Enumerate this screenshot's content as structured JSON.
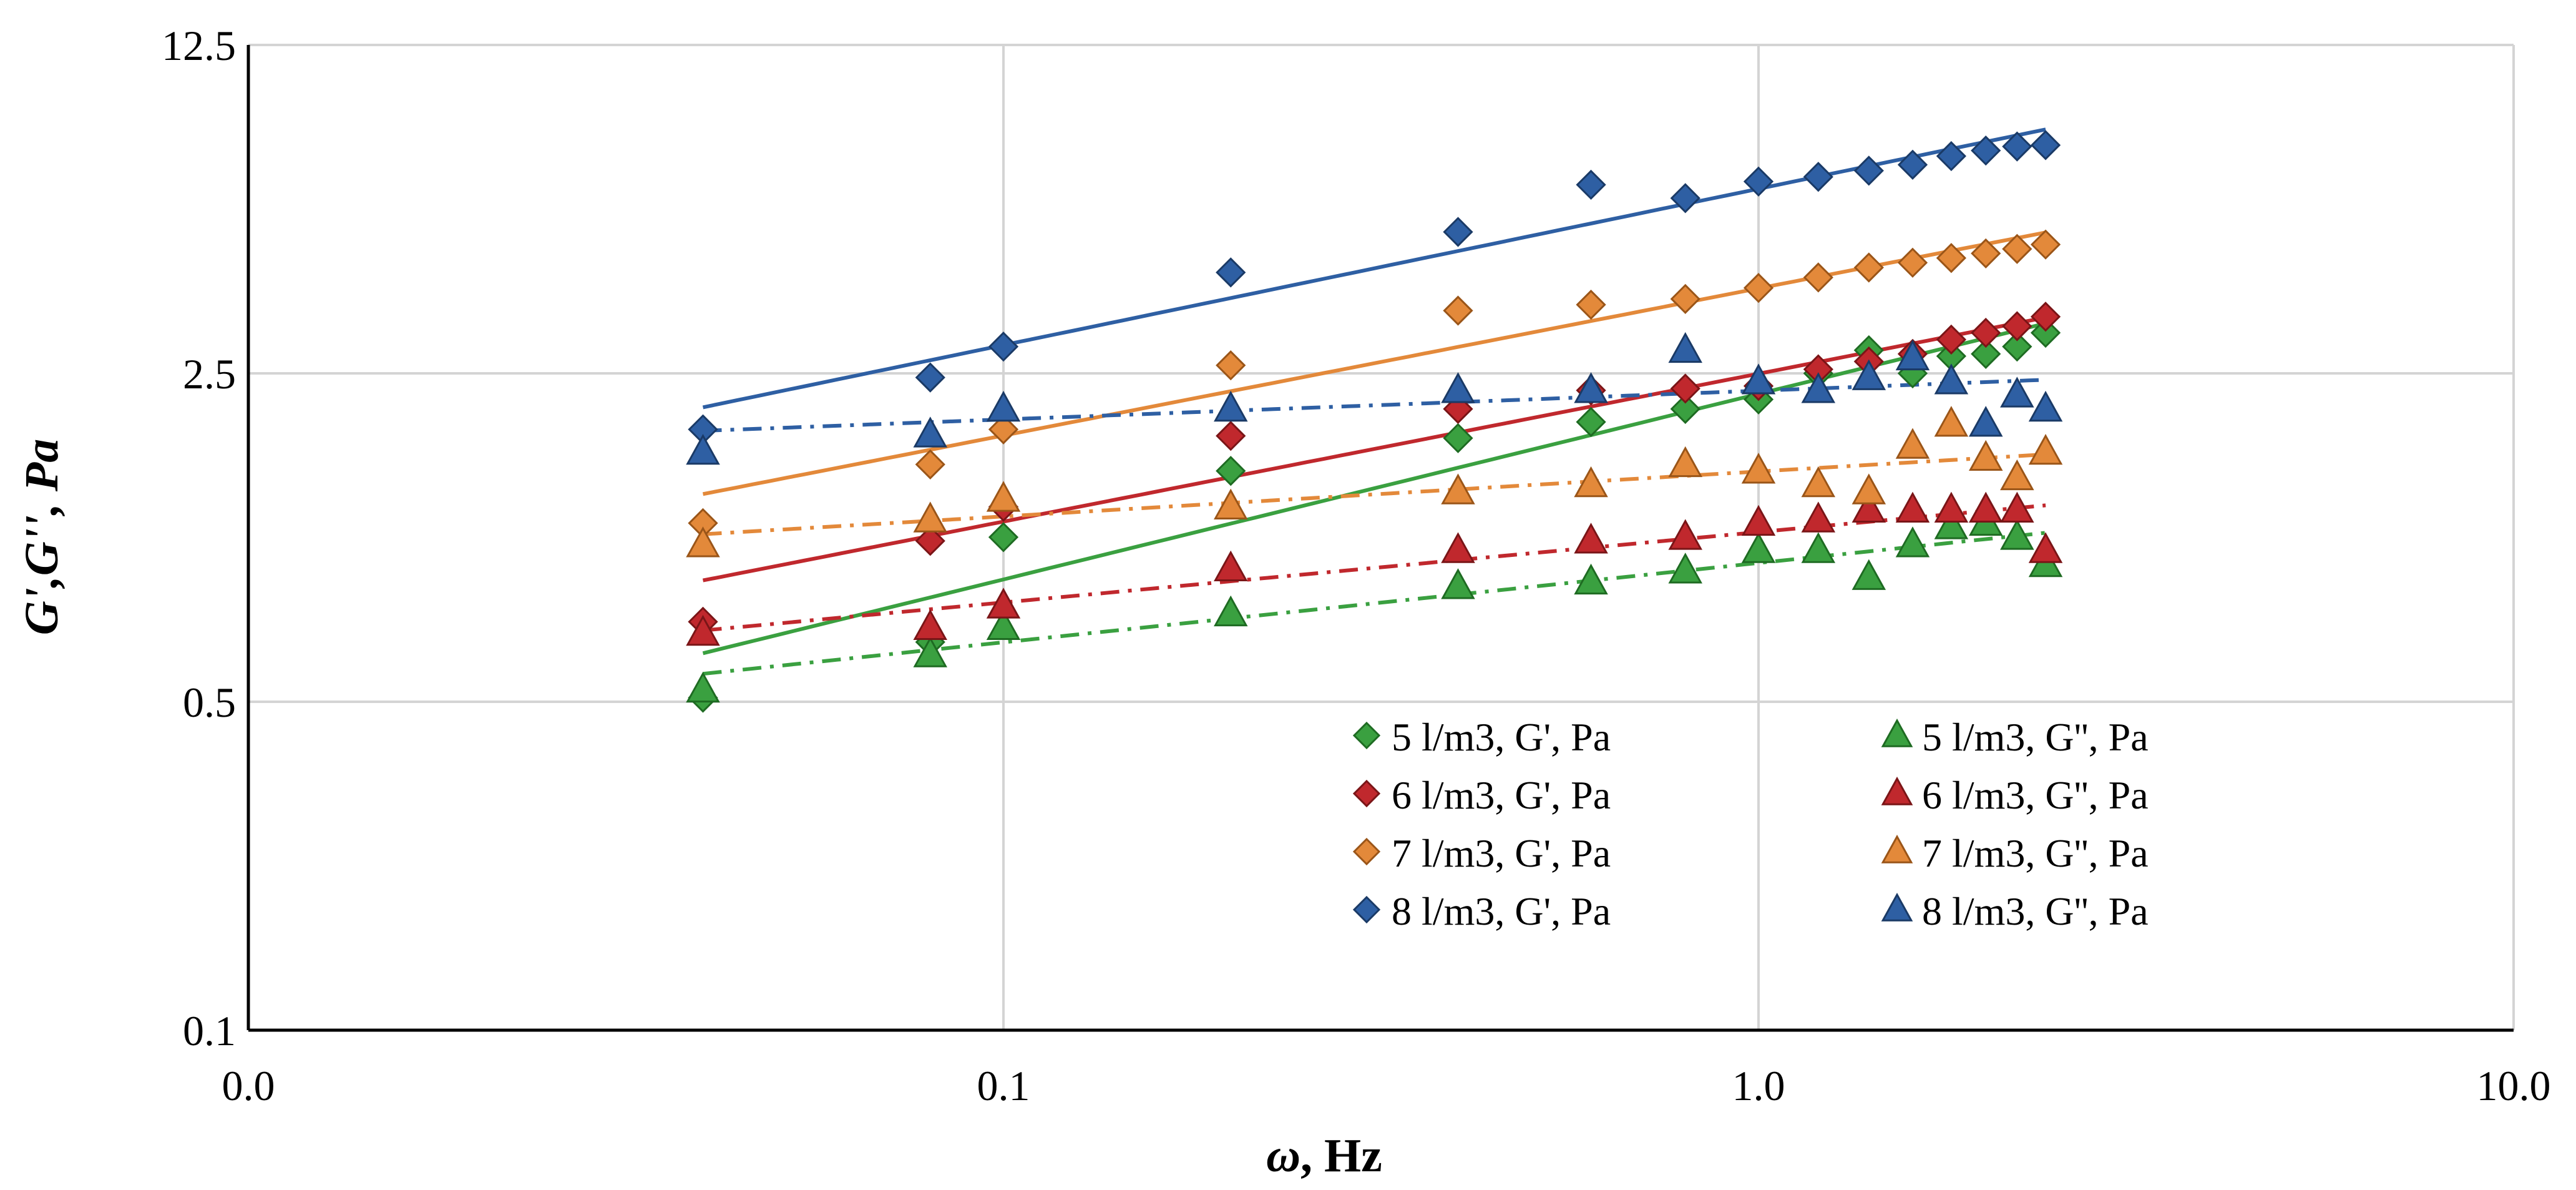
{
  "chart_data": {
    "type": "scatter",
    "x_scale": "log",
    "y_scale": "log",
    "xlabel_symbol": "ω",
    "xlabel_unit": ", Hz",
    "ylabel": "G',G'', Pa",
    "xlim": [
      0.01,
      10
    ],
    "ylim": [
      0.1,
      12.5
    ],
    "x_ticks": [
      {
        "value": 0.01,
        "label": "0.0"
      },
      {
        "value": 0.1,
        "label": "0.1"
      },
      {
        "value": 1,
        "label": "1.0"
      },
      {
        "value": 10,
        "label": "10.0"
      }
    ],
    "y_ticks": [
      {
        "value": 0.1,
        "label": "0.1"
      },
      {
        "value": 0.5,
        "label": "0.5"
      },
      {
        "value": 2.5,
        "label": "2.5"
      },
      {
        "value": 12.5,
        "label": "12.5"
      }
    ],
    "grid": true,
    "legend_position": "lower-right",
    "x": [
      0.04,
      0.08,
      0.1,
      0.2,
      0.4,
      0.6,
      0.8,
      1.0,
      1.2,
      1.4,
      1.6,
      1.8,
      2.0,
      2.2,
      2.4
    ],
    "series": [
      {
        "name": "5 l/m3, G', Pa",
        "marker": "diamond",
        "color": "#3aa040",
        "stroke": "#1e6b22",
        "line_style": "solid",
        "fit": "power",
        "fit_x": [
          0.04,
          2.4
        ],
        "values": [
          0.51,
          0.67,
          1.12,
          1.55,
          1.82,
          1.97,
          2.1,
          2.2,
          2.5,
          2.8,
          2.5,
          2.72,
          2.75,
          2.85,
          3.05
        ]
      },
      {
        "name": "6 l/m3, G', Pa",
        "marker": "diamond",
        "color": "#c0282d",
        "stroke": "#7a1517",
        "line_style": "solid",
        "fit": "power",
        "fit_x": [
          0.04,
          2.4
        ],
        "values": [
          0.74,
          1.1,
          1.3,
          1.84,
          2.1,
          2.3,
          2.32,
          2.35,
          2.55,
          2.65,
          2.75,
          2.95,
          3.05,
          3.15,
          3.3
        ]
      },
      {
        "name": "7 l/m3, G', Pa",
        "marker": "diamond",
        "color": "#e3893a",
        "stroke": "#9a5518",
        "line_style": "solid",
        "fit": "power",
        "fit_x": [
          0.04,
          2.4
        ],
        "values": [
          1.2,
          1.6,
          1.9,
          2.6,
          3.4,
          3.5,
          3.6,
          3.8,
          4.0,
          4.2,
          4.3,
          4.4,
          4.5,
          4.6,
          4.7
        ]
      },
      {
        "name": "8 l/m3, G', Pa",
        "marker": "diamond",
        "color": "#2e5fa3",
        "stroke": "#1a3a66",
        "line_style": "solid",
        "fit": "power",
        "fit_x": [
          0.04,
          2.4
        ],
        "values": [
          1.9,
          2.45,
          2.85,
          4.1,
          5.0,
          6.3,
          5.9,
          6.4,
          6.55,
          6.75,
          6.95,
          7.25,
          7.45,
          7.6,
          7.65
        ]
      },
      {
        "name": "5 l/m3, G'', Pa",
        "marker": "triangle",
        "color": "#3aa040",
        "stroke": "#1e6b22",
        "line_style": "dashdot",
        "fit": "power",
        "fit_x": [
          0.04,
          2.4
        ],
        "values": [
          0.53,
          0.63,
          0.72,
          0.77,
          0.88,
          0.9,
          0.95,
          1.05,
          1.05,
          0.92,
          1.08,
          1.18,
          1.2,
          1.12,
          0.98
        ]
      },
      {
        "name": "6 l/m3, G'', Pa",
        "marker": "triangle",
        "color": "#c0282d",
        "stroke": "#7a1517",
        "line_style": "dashdot",
        "fit": "power",
        "fit_x": [
          0.04,
          2.4
        ],
        "values": [
          0.7,
          0.72,
          0.8,
          0.96,
          1.05,
          1.1,
          1.12,
          1.2,
          1.22,
          1.28,
          1.28,
          1.28,
          1.28,
          1.28,
          1.05
        ]
      },
      {
        "name": "7 l/m3, G'', Pa",
        "marker": "triangle",
        "color": "#e3893a",
        "stroke": "#9a5518",
        "line_style": "dashdot",
        "fit": "power",
        "fit_x": [
          0.04,
          2.4
        ],
        "values": [
          1.08,
          1.22,
          1.35,
          1.3,
          1.4,
          1.45,
          1.6,
          1.55,
          1.45,
          1.4,
          1.75,
          1.95,
          1.65,
          1.5,
          1.7
        ]
      },
      {
        "name": "8 l/m3, G'', Pa",
        "marker": "triangle",
        "color": "#2e5fa3",
        "stroke": "#1a3a66",
        "line_style": "dashdot",
        "fit": "power",
        "fit_x": [
          0.04,
          2.4
        ],
        "values": [
          1.7,
          1.85,
          2.1,
          2.1,
          2.3,
          2.3,
          2.8,
          2.4,
          2.3,
          2.45,
          2.7,
          2.4,
          1.95,
          2.25,
          2.1
        ]
      }
    ],
    "legend_rows": [
      [
        "5 l/m3, G', Pa",
        "5 l/m3, G'', Pa"
      ],
      [
        "6 l/m3, G', Pa",
        "6 l/m3, G'', Pa"
      ],
      [
        "7 l/m3, G', Pa",
        "7 l/m3, G'', Pa"
      ],
      [
        "8 l/m3, G', Pa",
        "8 l/m3, G'', Pa"
      ]
    ]
  }
}
